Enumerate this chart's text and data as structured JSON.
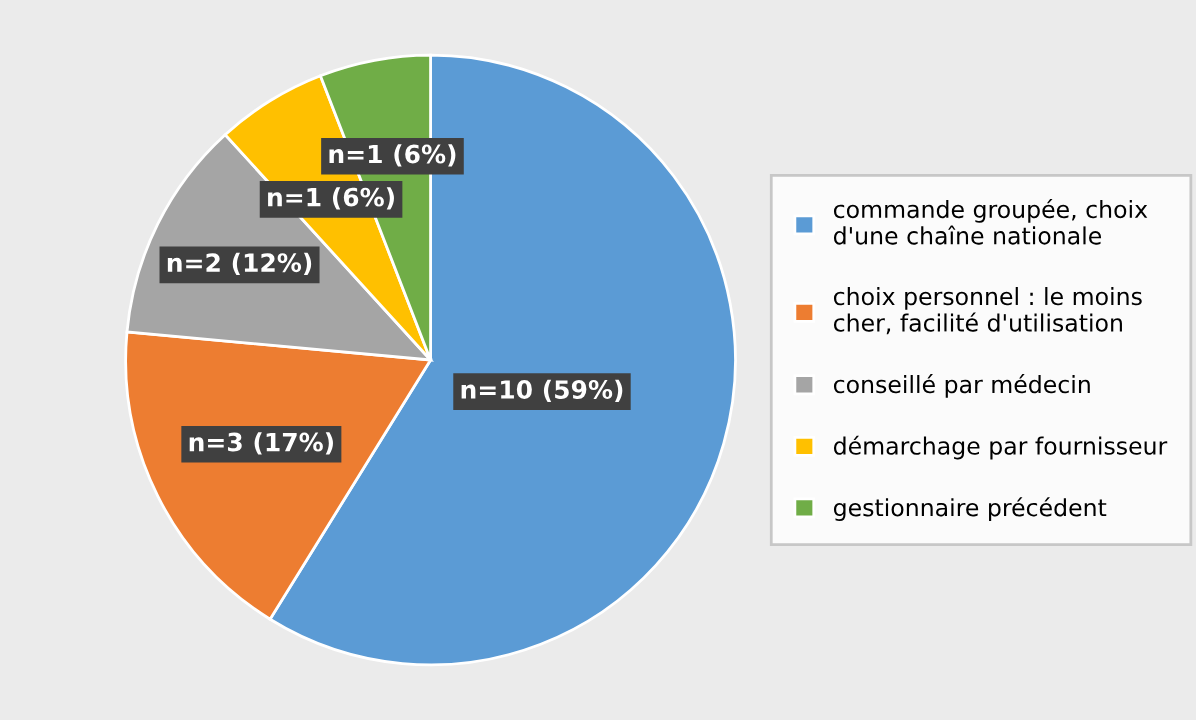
{
  "chart_data": {
    "type": "pie",
    "categories": [
      "commande groupée, choix\nd'une chaîne nationale",
      "choix personnel : le moins\ncher, facilité d'utilisation",
      "conseillé par médecin",
      "démarchage par fournisseur",
      "gestionnaire précédent"
    ],
    "values": [
      10,
      3,
      2,
      1,
      1
    ],
    "value_labels": [
      "n=10 (59%)",
      "n=3 (17%)",
      "n=2 (12%)",
      "n=1 (6%)",
      "n=1 (6%)"
    ],
    "colors": [
      "#5b9bd5",
      "#ed7d31",
      "#a5a5a5",
      "#ffc000",
      "#70ad47"
    ],
    "legend": "right"
  }
}
